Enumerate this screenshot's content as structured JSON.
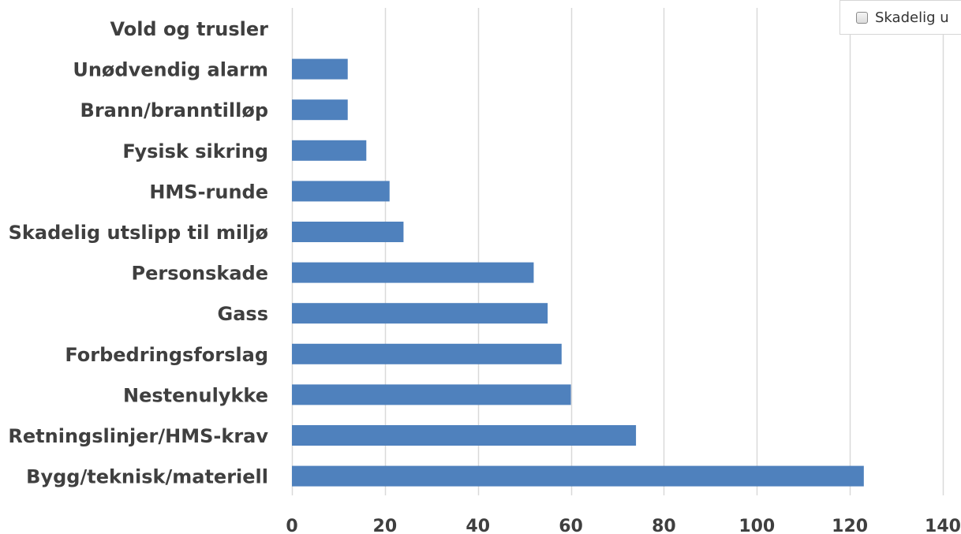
{
  "chart_data": {
    "type": "bar",
    "orientation": "horizontal",
    "categories": [
      "Vold og trusler",
      "Unødvendig alarm",
      "Brann/branntilløp",
      "Fysisk sikring",
      "HMS-runde",
      "Skadelig utslipp til miljø",
      "Personskade",
      "Gass",
      "Forbedringsforslag",
      "Nestenulykke",
      "Retningslinjer/HMS-krav",
      "Bygg/teknisk/materiell"
    ],
    "values": [
      0,
      12,
      12,
      16,
      21,
      24,
      52,
      55,
      58,
      60,
      74,
      123
    ],
    "xlim": [
      0,
      140
    ],
    "xticks": [
      "0",
      "20",
      "40",
      "60",
      "80",
      "100",
      "120",
      "140"
    ],
    "grid": true,
    "bar_color": "#4f81bd",
    "grid_color": "#d9d9d9",
    "title": "",
    "xlabel": "",
    "ylabel": ""
  },
  "legend": {
    "label": "Skadelig u",
    "checked": false
  }
}
